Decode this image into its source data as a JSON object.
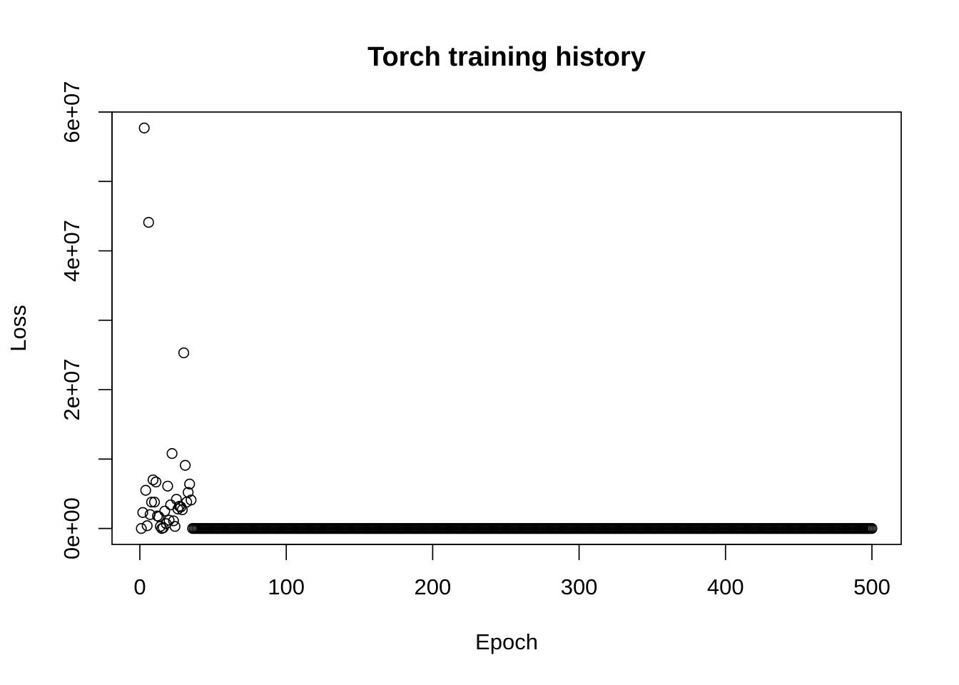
{
  "chart_data": {
    "type": "scatter",
    "title": "Torch training history",
    "xlabel": "Epoch",
    "ylabel": "Loss",
    "xlim": [
      -19,
      520
    ],
    "ylim": [
      -2300000,
      60000000
    ],
    "x_ticks": [
      0,
      100,
      200,
      300,
      400,
      500
    ],
    "x_tick_labels": [
      "0",
      "100",
      "200",
      "300",
      "400",
      "500"
    ],
    "y_ticks": [
      0,
      10000000,
      20000000,
      30000000,
      40000000,
      50000000,
      60000000
    ],
    "y_tick_labels": [
      "0e+00",
      "",
      "2e+07",
      "",
      "4e+07",
      "",
      "6e+07"
    ],
    "grid": false,
    "legend": "none",
    "marker": "open-circle",
    "colors": {
      "points": "#000000",
      "axes": "#000000",
      "background": "#ffffff"
    },
    "points": {
      "x": [
        1,
        2,
        3,
        4,
        5,
        6,
        7,
        8,
        9,
        10,
        11,
        12,
        13,
        14,
        15,
        16,
        17,
        18,
        19,
        20,
        21,
        22,
        23,
        24,
        25,
        26,
        27,
        28,
        29,
        30,
        31,
        32,
        33,
        34,
        35
      ],
      "y": [
        0,
        2300000,
        57700000,
        5500000,
        400000,
        44100000,
        2000000,
        3800000,
        7000000,
        3800000,
        6700000,
        1800000,
        1700000,
        300000,
        0,
        100000,
        2500000,
        700000,
        6100000,
        1200000,
        3400000,
        10800000,
        1100000,
        300000,
        4200000,
        2800000,
        3200000,
        3100000,
        2700000,
        25300000,
        9100000,
        3800000,
        5200000,
        6400000,
        4100000
      ]
    },
    "constant_tail": {
      "x_start": 36,
      "x_end": 500,
      "y": 0
    }
  }
}
